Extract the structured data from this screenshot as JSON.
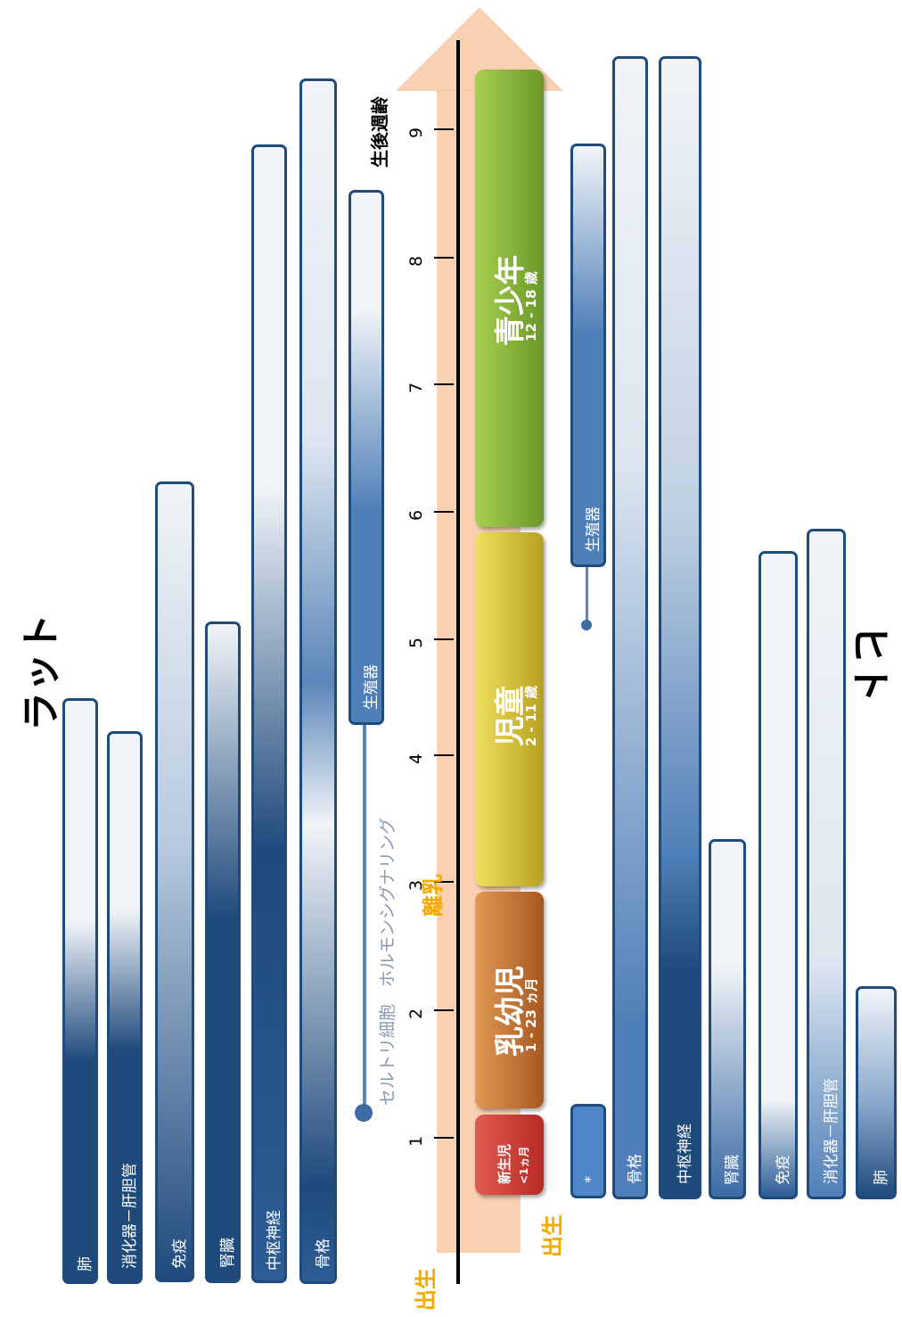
{
  "titles": {
    "rat": "ラット",
    "human": "ヒト"
  },
  "axis": {
    "label": "生後週齢",
    "ticks": [
      "1",
      "2",
      "3",
      "4",
      "5",
      "6",
      "7",
      "8",
      "9"
    ]
  },
  "markers": {
    "birth_left": "出生",
    "birth_right": "出生",
    "weaning": "離乳"
  },
  "annotations": {
    "hormone_signaling": "セルトリ細胞　ホルモンシグナリング"
  },
  "stages": [
    {
      "name": "新生児",
      "age": "<1ヵ月",
      "color": "#c8302a"
    },
    {
      "name": "乳幼児",
      "age": "1 - 23 ヵ月",
      "color": "#c06a2a"
    },
    {
      "name": "児童",
      "age": "2 - 11 歳",
      "color": "#d8c030"
    },
    {
      "name": "青少年",
      "age": "12 - 18 歳",
      "color": "#8ab434"
    }
  ],
  "rat_organs": [
    {
      "label": "肺"
    },
    {
      "label": "消化器－肝胆管"
    },
    {
      "label": "免疫"
    },
    {
      "label": "腎臓"
    },
    {
      "label": "中枢神経"
    },
    {
      "label": "骨格"
    },
    {
      "label": "生殖器"
    }
  ],
  "human_organs": [
    {
      "label": "*"
    },
    {
      "label": "骨格"
    },
    {
      "label": "中枢神経"
    },
    {
      "label": "腎臓"
    },
    {
      "label": "免疫"
    },
    {
      "label": "消化器－肝胆管"
    },
    {
      "label": "肺"
    },
    {
      "label": "生殖器"
    }
  ],
  "colors": {
    "dark_blue": "#1f4a7c",
    "light_blue": "#f0f4f8",
    "arrow": "#f8c9a4",
    "timeline": "#000000",
    "orange_text": "#f5a800"
  }
}
